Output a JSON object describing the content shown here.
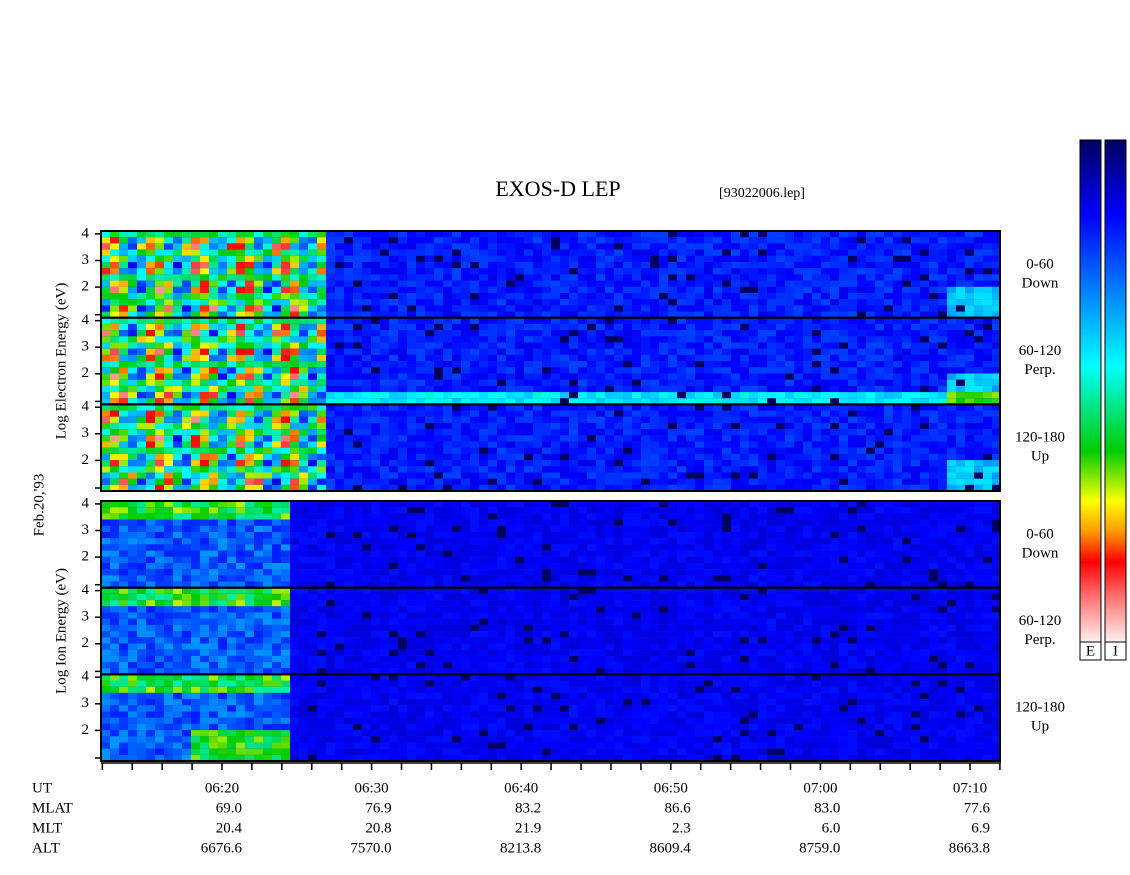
{
  "title": "EXOS-D LEP",
  "file": "[93022006.lep]",
  "date": "Feb.20,'93",
  "panels": [
    {
      "axis_label": "Log Electron Energy (eV)",
      "channels": [
        {
          "range": "0-60",
          "direction": "Down"
        },
        {
          "range": "60-120",
          "direction": "Perp."
        },
        {
          "range": "120-180",
          "direction": "Up"
        }
      ]
    },
    {
      "axis_label": "Log Ion Energy (eV)",
      "channels": [
        {
          "range": "0-60",
          "direction": "Down"
        },
        {
          "range": "60-120",
          "direction": "Perp."
        },
        {
          "range": "120-180",
          "direction": "Up"
        }
      ]
    }
  ],
  "energy_ticks": [
    4,
    3,
    2
  ],
  "ephemeris": {
    "UT": [
      "06:20",
      "06:30",
      "06:40",
      "06:50",
      "07:00",
      "07:10"
    ],
    "MLAT": [
      "69.0",
      "76.9",
      "83.2",
      "86.6",
      "83.0",
      "77.6"
    ],
    "MLT": [
      "20.4",
      "20.8",
      "21.9",
      "2.3",
      "6.0",
      "6.9"
    ],
    "ALT": [
      "6676.6",
      "7570.0",
      "8213.8",
      "8609.4",
      "8759.0",
      "8663.8"
    ]
  },
  "colorbar_labels": [
    "E",
    "I"
  ]
}
